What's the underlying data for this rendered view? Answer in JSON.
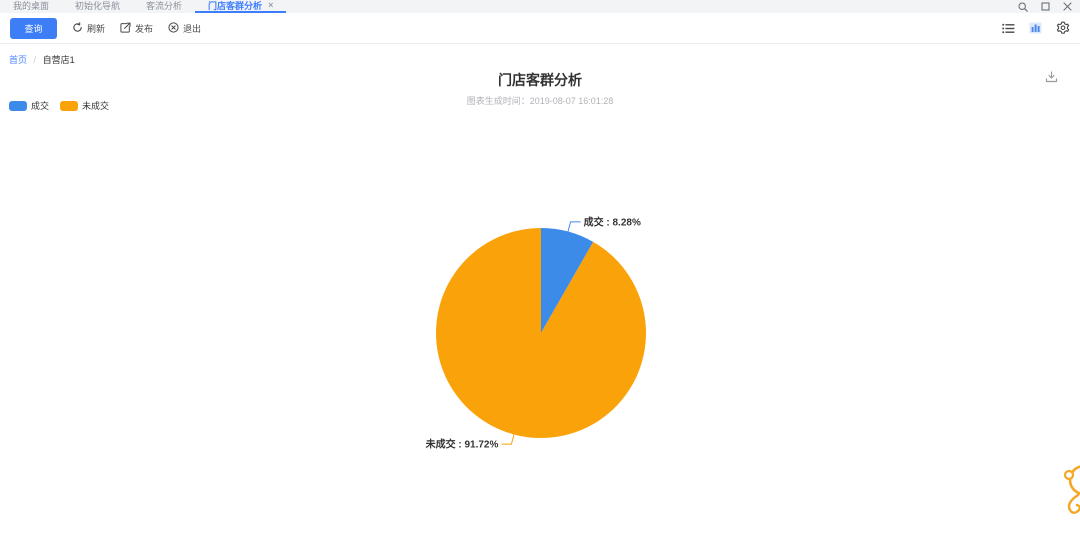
{
  "tab_bar": {
    "tabs": [
      {
        "label": "我的桌面",
        "active": false
      },
      {
        "label": "初始化导航",
        "active": false
      },
      {
        "label": "客流分析",
        "active": false
      },
      {
        "label": "门店客群分析",
        "active": true
      }
    ],
    "close_glyph": "×"
  },
  "toolbar": {
    "query_label": "查询",
    "refresh_label": "刷新",
    "publish_label": "发布",
    "exit_label": "退出"
  },
  "breadcrumb": {
    "home": "首页",
    "separator": "/",
    "current": "自营店1"
  },
  "chart_header": {
    "title": "门店客群分析",
    "subtitle": "图表生成时间：2019-08-07 16:01:28"
  },
  "chart_data": {
    "type": "pie",
    "title": "门店客群分析",
    "generated_at": "2019-08-07 16:01:28",
    "legend_position": "top-left",
    "unit": "%",
    "start_angle_deg": 0,
    "slices": [
      {
        "name": "成交",
        "value": 8.28,
        "label": "成交 : 8.28%",
        "color": "#3d8be8"
      },
      {
        "name": "未成交",
        "value": 91.72,
        "label": "未成交 : 91.72%",
        "color": "#faa20a"
      }
    ]
  },
  "colors": {
    "accent_blue": "#3d7eff",
    "pie_blue": "#3d8be8",
    "pie_orange": "#faa20a",
    "mascot_orange": "#f5a623"
  }
}
